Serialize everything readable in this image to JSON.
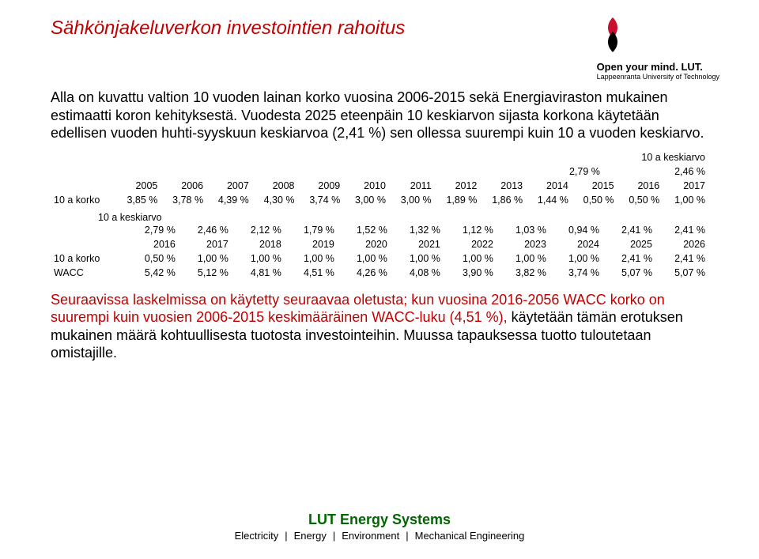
{
  "title": "Sähkönjakeluverkon investointien rahoitus",
  "logo": {
    "line1": "Open your mind. LUT.",
    "line2": "Lappeenranta University of Technology",
    "color1": "#c8102e",
    "color2": "#000000"
  },
  "intro": "Alla on kuvattu valtion 10 vuoden lainan korko vuosina 2006-2015 sekä Energiaviraston mukainen estimaatti koron kehityksestä. Vuodesta 2025 eteenpäin 10 keskiarvon sijasta korkona käytetään edellisen vuoden huhti-syyskuun keskiarvoa (2,41 %) sen ollessa suurempi kuin 10 a vuoden keskiarvo.",
  "table1": {
    "avg_label": "10 a keskiarvo",
    "avg_values": [
      "2,79 %",
      "2,46 %"
    ],
    "years": [
      "2005",
      "2006",
      "2007",
      "2008",
      "2009",
      "2010",
      "2011",
      "2012",
      "2013",
      "2014",
      "2015",
      "2016",
      "2017"
    ],
    "row_label": "10 a korko",
    "values": [
      "3,85 %",
      "3,78 %",
      "4,39 %",
      "4,30 %",
      "3,74 %",
      "3,00 %",
      "3,00 %",
      "1,89 %",
      "1,86 %",
      "1,44 %",
      "0,50 %",
      "0,50 %",
      "1,00 %"
    ]
  },
  "table2": {
    "sub_label": "10 a keskiarvo",
    "avg_row": [
      "2,79 %",
      "2,46 %",
      "2,12 %",
      "1,79 %",
      "1,52 %",
      "1,32 %",
      "1,12 %",
      "1,03 %",
      "0,94 %",
      "2,41 %",
      "2,41 %"
    ],
    "years": [
      "2016",
      "2017",
      "2018",
      "2019",
      "2020",
      "2021",
      "2022",
      "2023",
      "2024",
      "2025",
      "2026"
    ],
    "row1_label": "10 a korko",
    "row1": [
      "0,50 %",
      "1,00 %",
      "1,00 %",
      "1,00 %",
      "1,00 %",
      "1,00 %",
      "1,00 %",
      "1,00 %",
      "1,00 %",
      "2,41 %",
      "2,41 %"
    ],
    "row2_label": "WACC",
    "row2": [
      "5,42 %",
      "5,12 %",
      "4,81 %",
      "4,51 %",
      "4,26 %",
      "4,08 %",
      "3,90 %",
      "3,82 %",
      "3,74 %",
      "5,07 %",
      "5,07 %"
    ]
  },
  "note_red": "Seuraavissa laskelmissa on käytetty seuraavaa oletusta; kun vuosina 2016-2056 WACC korko on suurempi kuin vuosien 2006-2015 keskimääräinen WACC-luku (4,51 %),",
  "note_black": "käytetään tämän erotuksen mukainen määrä kohtuullisesta tuotosta investointeihin. Muussa tapauksessa tuotto tuloutetaan omistajille.",
  "footer": {
    "main": "LUT Energy Systems",
    "sub": [
      "Electricity",
      "Energy",
      "Environment",
      "Mechanical Engineering"
    ]
  }
}
